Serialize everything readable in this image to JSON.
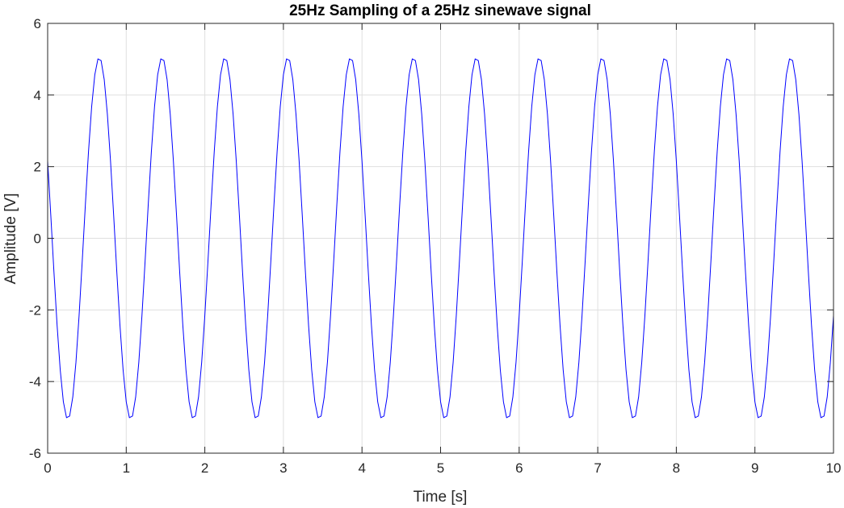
{
  "chart_data": {
    "type": "line",
    "title": "25Hz Sampling of a 25Hz sinewave signal",
    "xlabel": "Time [s]",
    "ylabel": "Amplitude [V]",
    "xlim": [
      0,
      10
    ],
    "ylim": [
      -6,
      6
    ],
    "xticks": [
      "0",
      "1",
      "2",
      "3",
      "4",
      "5",
      "6",
      "7",
      "8",
      "9",
      "10"
    ],
    "yticks": [
      "-6",
      "-4",
      "-2",
      "0",
      "2",
      "4",
      "6"
    ],
    "grid": true,
    "colors": {
      "line": "#0000ff",
      "grid": "#dfdfdf",
      "axes": "#262626"
    },
    "series": [
      {
        "amplitude": 5.05,
        "frequency_hz": 1.25,
        "phase_rad": 2.7,
        "sample_interval_s": 0.04,
        "t_start": 0,
        "t_end": 10
      }
    ]
  }
}
